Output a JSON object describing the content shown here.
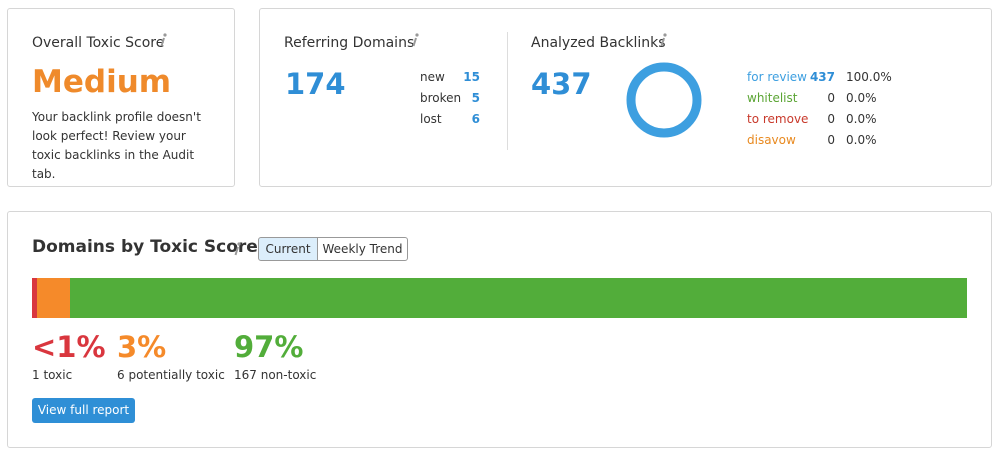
{
  "toxic_score": {
    "title": "Overall Toxic Score",
    "level": "Medium",
    "description": "Your backlink profile doesn't look perfect! Review your toxic backlinks in the Audit tab."
  },
  "referring_domains": {
    "title": "Referring Domains",
    "total": 174,
    "rows": [
      {
        "label": "new",
        "count": 15
      },
      {
        "label": "broken",
        "count": 5
      },
      {
        "label": "lost",
        "count": 6
      }
    ]
  },
  "analyzed_backlinks": {
    "title": "Analyzed Backlinks",
    "total": 437,
    "rows": [
      {
        "label": "for review",
        "count": 437,
        "percent": "100.0%",
        "color": "#3d9fe0"
      },
      {
        "label": "whitelist",
        "count": 0,
        "percent": "0.0%",
        "color": "#5ba534"
      },
      {
        "label": "to remove",
        "count": 0,
        "percent": "0.0%",
        "color": "#c8392b"
      },
      {
        "label": "disavow",
        "count": 0,
        "percent": "0.0%",
        "color": "#e8891f"
      }
    ]
  },
  "domains_by_toxic_score": {
    "title": "Domains by Toxic Score",
    "tabs": [
      "Current",
      "Weekly Trend"
    ],
    "segments": [
      {
        "percent_label": "<1%",
        "count": 1,
        "label": "toxic",
        "color": "#d9363e"
      },
      {
        "percent_label": "3%",
        "count": 6,
        "label": "potentially toxic",
        "color": "#f58a2a"
      },
      {
        "percent_label": "97%",
        "count": 167,
        "label": "non-toxic",
        "color": "#52ad3a"
      }
    ],
    "button": "View full report"
  }
}
